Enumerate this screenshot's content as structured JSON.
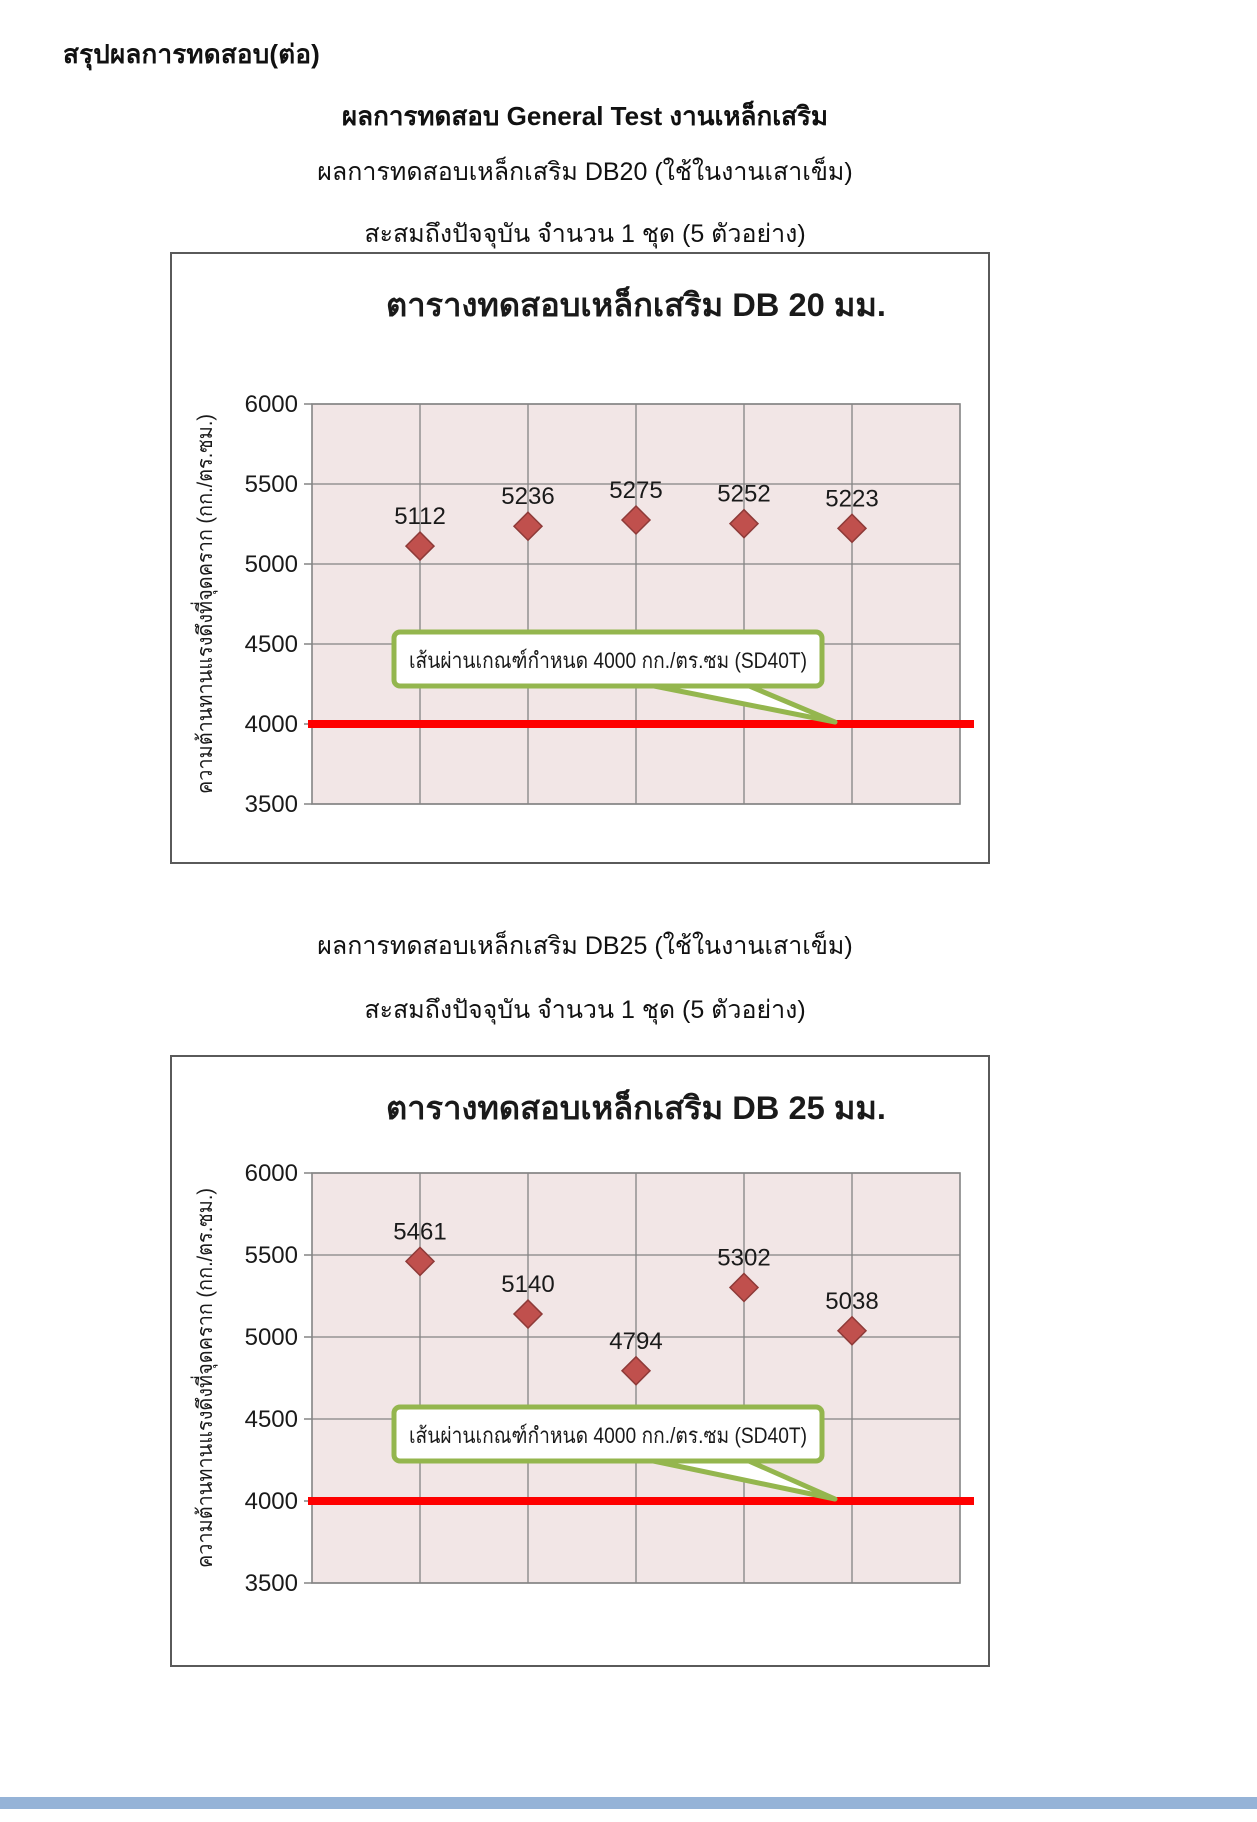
{
  "page": {
    "header": "สรุปผลการทดสอบ(ต่อ)",
    "main_title": "ผลการทดสอบ General Test งานเหล็กเสริม",
    "sections": [
      {
        "subtitle": "ผลการทดสอบเหล็กเสริม DB20 (ใช้ในงานเสาเข็ม)",
        "accumulation": "สะสมถึงปัจจุบัน จำนวน 1 ชุด (5 ตัวอย่าง)"
      },
      {
        "subtitle": "ผลการทดสอบเหล็กเสริม DB25 (ใช้ในงานเสาเข็ม)",
        "accumulation": "สะสมถึงปัจจุบัน จำนวน 1 ชุด (5 ตัวอย่าง)"
      }
    ]
  },
  "colors": {
    "marker": "#c0504d",
    "marker_stroke": "#8e3a38",
    "plot_bg": "#f2e6e6",
    "grid": "#848484",
    "ref_line": "#fe0000",
    "callout_border": "#94b64e",
    "text": "#1a1a1a",
    "bottom_bar": "#95b3d7"
  },
  "chart_data": [
    {
      "type": "scatter",
      "title": "ตารางทดสอบเหล็กเสริม DB 20 มม.",
      "x": [
        1,
        2,
        3,
        4,
        5
      ],
      "values": [
        5112,
        5236,
        5275,
        5252,
        5223
      ],
      "xlabel": "",
      "ylabel": "ความต้านทานแรงดึงที่จุดคราก  (กก./ตร.ซม.)",
      "ylim": [
        3500,
        6000
      ],
      "yticks": [
        6000,
        5500,
        5000,
        4500,
        4000,
        3500
      ],
      "grid": true,
      "marker": "diamond",
      "legend": null,
      "reference_line": 4000,
      "annotation": "เส้นผ่านเกณฑ์กำหนด 4000 กก./ตร.ซม (SD40T)"
    },
    {
      "type": "scatter",
      "title": "ตารางทดสอบเหล็กเสริม DB 25 มม.",
      "x": [
        1,
        2,
        3,
        4,
        5
      ],
      "values": [
        5461,
        5140,
        4794,
        5302,
        5038
      ],
      "xlabel": "",
      "ylabel": "ความต้านทานแรงดึงที่จุดคราก  (กก./ตร.ซม.)",
      "ylim": [
        3500,
        6000
      ],
      "yticks": [
        6000,
        5500,
        5000,
        4500,
        4000,
        3500
      ],
      "grid": true,
      "marker": "diamond",
      "legend": null,
      "reference_line": 4000,
      "annotation": "เส้นผ่านเกณฑ์กำหนด 4000 กก./ตร.ซม (SD40T)"
    }
  ]
}
